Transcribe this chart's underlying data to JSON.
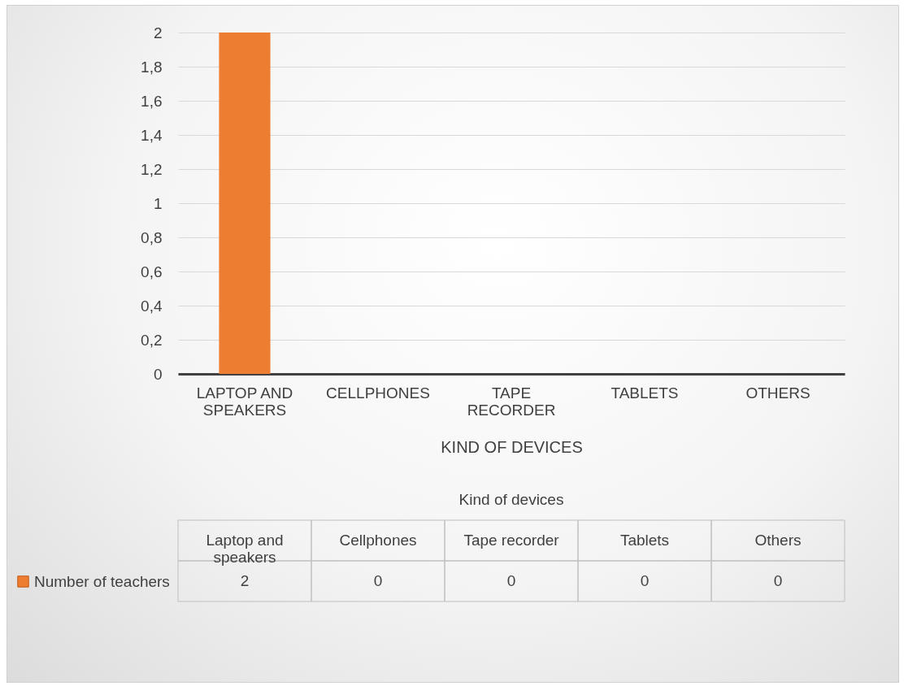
{
  "chart_data": {
    "type": "bar",
    "categories": [
      "LAPTOP AND SPEAKERS",
      "CELLPHONES",
      "TAPE RECORDER",
      "TABLETS",
      "OTHERS"
    ],
    "series": [
      {
        "name": "Number of teachers",
        "color": "#ed7d31",
        "values": [
          2,
          0,
          0,
          0,
          0
        ]
      }
    ],
    "xlabel": "KIND OF DEVICES",
    "ylim": [
      0,
      2
    ],
    "yticks": [
      0,
      {
        "value": 0.2,
        "label": "0,2"
      },
      {
        "value": 0.4,
        "label": "0,4"
      },
      {
        "value": 0.6,
        "label": "0,6"
      },
      {
        "value": 0.8,
        "label": "0,8"
      },
      1,
      {
        "value": 1.2,
        "label": "1,2"
      },
      {
        "value": 1.4,
        "label": "1,4"
      },
      {
        "value": 1.6,
        "label": "1,6"
      },
      {
        "value": 1.8,
        "label": "1,8"
      },
      2
    ],
    "annotations": [
      "Kind of devices",
      "Laptop and speakers",
      "Cellphones",
      "Tape recorder",
      "Tablets",
      "Others"
    ],
    "grid": "y",
    "legend": "bottom left",
    "data_labels": true
  }
}
